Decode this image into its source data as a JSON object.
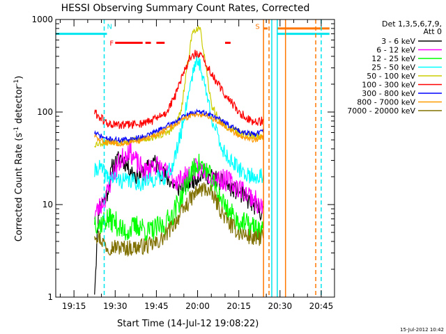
{
  "chart_data": {
    "type": "line",
    "title": "HESSI Observing Summary Count Rates, Corrected",
    "xlabel": "Start Time (14-Jul-12 19:08:22)",
    "ylabel_parts": [
      "Corrected Count Rate (s",
      "-1",
      " detector",
      "-1",
      ")"
    ],
    "y_scale": "log",
    "ylim": [
      1,
      1000
    ],
    "xlim": [
      "19:08:22",
      "20:49:50"
    ],
    "grid": false,
    "legend_placement": "right",
    "legend_header": [
      "Det 1,3,5,6,7,9,",
      "Att 0"
    ],
    "timestamp": "15-Jul-2012 10:42",
    "y_ticks": [
      {
        "value": 1,
        "label": "1"
      },
      {
        "value": 10,
        "label": "10"
      },
      {
        "value": 100,
        "label": "100"
      },
      {
        "value": 1000,
        "label": "1000"
      }
    ],
    "x_ticks": [
      {
        "time": "19:15",
        "label": "19:15"
      },
      {
        "time": "19:30",
        "label": "19:30"
      },
      {
        "time": "19:45",
        "label": "19:45"
      },
      {
        "time": "20:00",
        "label": "20:00"
      },
      {
        "time": "20:15",
        "label": "20:15"
      },
      {
        "time": "20:30",
        "label": "20:30"
      },
      {
        "time": "20:45",
        "label": "20:45"
      }
    ],
    "series": [
      {
        "name": "3 - 6 keV",
        "color": "#000000",
        "noise": 0.1,
        "seed": 11,
        "times": [
          "19:22:30",
          "19:24",
          "19:27",
          "19:29",
          "19:32",
          "19:35",
          "19:38",
          "19:41",
          "19:44",
          "19:47",
          "19:50",
          "19:53",
          "19:56",
          "19:59",
          "20:02",
          "20:05",
          "20:08",
          "20:11",
          "20:14",
          "20:17",
          "20:20",
          "20:22",
          "20:24"
        ],
        "values": [
          1.2,
          9,
          13,
          26,
          33,
          25,
          20,
          23,
          30,
          22,
          18,
          15,
          17,
          19,
          22,
          20,
          18,
          16,
          14,
          12,
          10,
          9,
          8
        ]
      },
      {
        "name": "6 - 12 keV",
        "color": "#ff00ff",
        "noise": 0.12,
        "seed": 23,
        "times": [
          "19:22:30",
          "19:24",
          "19:27",
          "19:29",
          "19:32",
          "19:35",
          "19:38",
          "19:41",
          "19:44",
          "19:47",
          "19:50",
          "19:53",
          "19:56",
          "19:59",
          "20:02",
          "20:05",
          "20:08",
          "20:11",
          "20:14",
          "20:17",
          "20:20",
          "20:22",
          "20:24"
        ],
        "values": [
          8,
          9,
          13,
          21,
          30,
          40,
          28,
          22,
          28,
          24,
          20,
          18,
          20,
          24,
          24,
          21,
          19,
          18,
          16,
          14,
          12,
          10,
          9
        ]
      },
      {
        "name": "12 - 25 keV",
        "color": "#00ff00",
        "noise": 0.13,
        "seed": 37,
        "times": [
          "19:22:30",
          "19:24",
          "19:27",
          "19:30",
          "19:33",
          "19:36",
          "19:39",
          "19:42",
          "19:45",
          "19:48",
          "19:51",
          "19:54",
          "19:57",
          "20:00",
          "20:03",
          "20:06",
          "20:09",
          "20:12",
          "20:15",
          "20:18",
          "20:21",
          "20:24"
        ],
        "values": [
          7,
          6,
          7,
          6.5,
          5,
          5.5,
          6,
          5,
          5.5,
          6,
          8,
          12,
          20,
          28,
          24,
          16,
          11,
          8,
          6.5,
          6,
          5.5,
          5
        ]
      },
      {
        "name": "25 - 50 keV",
        "color": "#00ffff",
        "noise": 0.09,
        "seed": 41,
        "times": [
          "19:22:30",
          "19:24",
          "19:27",
          "19:30",
          "19:33",
          "19:36",
          "19:39",
          "19:42",
          "19:45",
          "19:48",
          "19:51",
          "19:54",
          "19:57",
          "19:59",
          "20:01",
          "20:03",
          "20:06",
          "20:09",
          "20:12",
          "20:15",
          "20:18",
          "20:21",
          "20:24"
        ],
        "values": [
          22,
          26,
          20,
          19,
          18,
          18,
          17,
          18,
          19,
          20,
          26,
          60,
          180,
          340,
          330,
          170,
          70,
          40,
          30,
          24,
          21,
          20,
          20
        ]
      },
      {
        "name": "50 - 100 keV",
        "color": "#cccc00",
        "noise": 0.04,
        "seed": 53,
        "times": [
          "19:22:30",
          "19:24",
          "19:27",
          "19:30",
          "19:33",
          "19:36",
          "19:39",
          "19:42",
          "19:45",
          "19:48",
          "19:51",
          "19:54",
          "19:56",
          "19:58",
          "19:59",
          "20:00",
          "20:01",
          "20:02",
          "20:03",
          "20:05",
          "20:08",
          "20:11",
          "20:14",
          "20:17",
          "20:20",
          "20:22",
          "20:24"
        ],
        "values": [
          45,
          46,
          47,
          48,
          48,
          49,
          50,
          52,
          55,
          58,
          65,
          100,
          280,
          700,
          780,
          800,
          750,
          500,
          300,
          120,
          80,
          68,
          62,
          58,
          55,
          56,
          52
        ]
      },
      {
        "name": "100 - 300 keV",
        "color": "#ff0000",
        "noise": 0.05,
        "seed": 61,
        "times": [
          "19:22:30",
          "19:24",
          "19:27",
          "19:30",
          "19:33",
          "19:36",
          "19:39",
          "19:42",
          "19:45",
          "19:48",
          "19:51",
          "19:54",
          "19:57",
          "19:59",
          "20:01",
          "20:03",
          "20:06",
          "20:09",
          "20:12",
          "20:15",
          "20:18",
          "20:21",
          "20:24"
        ],
        "values": [
          100,
          90,
          75,
          72,
          72,
          73,
          75,
          78,
          85,
          95,
          130,
          220,
          380,
          420,
          410,
          330,
          230,
          170,
          130,
          100,
          85,
          78,
          80
        ]
      },
      {
        "name": "300 - 800 keV",
        "color": "#0000ff",
        "noise": 0.03,
        "seed": 71,
        "times": [
          "19:22:30",
          "19:24",
          "19:27",
          "19:30",
          "19:33",
          "19:36",
          "19:39",
          "19:42",
          "19:45",
          "19:48",
          "19:51",
          "19:54",
          "19:57",
          "20:00",
          "20:03",
          "20:06",
          "20:09",
          "20:12",
          "20:15",
          "20:18",
          "20:21",
          "20:24"
        ],
        "values": [
          60,
          56,
          51,
          50,
          50,
          51,
          53,
          57,
          62,
          68,
          76,
          86,
          95,
          100,
          97,
          90,
          80,
          70,
          63,
          60,
          58,
          62
        ]
      },
      {
        "name": "800 - 7000 keV",
        "color": "#ff9900",
        "noise": 0.03,
        "seed": 83,
        "times": [
          "19:22:30",
          "19:24",
          "19:27",
          "19:30",
          "19:33",
          "19:36",
          "19:39",
          "19:42",
          "19:45",
          "19:48",
          "19:51",
          "19:54",
          "19:57",
          "20:00",
          "20:03",
          "20:06",
          "20:09",
          "20:12",
          "20:15",
          "20:18",
          "20:21",
          "20:24"
        ],
        "values": [
          55,
          50,
          47,
          46,
          46,
          47,
          49,
          52,
          57,
          63,
          71,
          80,
          90,
          96,
          92,
          84,
          74,
          64,
          56,
          52,
          50,
          54
        ]
      },
      {
        "name": "7000 - 20000 keV",
        "color": "#807000",
        "noise": 0.09,
        "seed": 97,
        "times": [
          "19:22:30",
          "19:24",
          "19:27",
          "19:30",
          "19:33",
          "19:36",
          "19:39",
          "19:42",
          "19:45",
          "19:48",
          "19:51",
          "19:54",
          "19:57",
          "20:00",
          "20:03",
          "20:06",
          "20:09",
          "20:12",
          "20:15",
          "20:18",
          "20:21",
          "20:24"
        ],
        "values": [
          5,
          4.5,
          3.5,
          3.5,
          3.4,
          3.4,
          3.5,
          3.6,
          3.8,
          4.5,
          6,
          8,
          11,
          14,
          15,
          12,
          8,
          6,
          5,
          4.6,
          4.2,
          4.6
        ]
      }
    ],
    "markers": [
      {
        "kind": "bar",
        "color": "#00e5ee",
        "y": 700,
        "t_start": "19:08:22",
        "t_end": "19:27",
        "width": 3
      },
      {
        "kind": "bar",
        "color": "#00e5ee",
        "y": 700,
        "t_start": "20:29",
        "t_end": "20:48",
        "width": 3
      },
      {
        "kind": "bar",
        "color": "#ff7700",
        "y": 800,
        "t_start": "20:24",
        "t_end": "20:25:30",
        "width": 3
      },
      {
        "kind": "bar",
        "color": "#ff7700",
        "y": 800,
        "t_start": "20:29",
        "t_end": "20:48",
        "width": 3
      },
      {
        "kind": "bar",
        "color": "#ff0000",
        "y": 560,
        "t_start": "19:30",
        "t_end": "19:40",
        "width": 3
      },
      {
        "kind": "bar",
        "color": "#ff0000",
        "y": 560,
        "t_start": "19:41",
        "t_end": "19:43",
        "width": 3
      },
      {
        "kind": "bar",
        "color": "#ff0000",
        "y": 560,
        "t_start": "19:45",
        "t_end": "19:48",
        "width": 3
      },
      {
        "kind": "bar",
        "color": "#ff0000",
        "y": 560,
        "t_start": "20:10",
        "t_end": "20:12",
        "width": 3
      },
      {
        "kind": "vline",
        "color": "#00e5ee",
        "t": "19:26",
        "dash": "6,4"
      },
      {
        "kind": "vline",
        "color": "#ff7700",
        "t": "20:24",
        "dash": ""
      },
      {
        "kind": "vline",
        "color": "#ff7700",
        "t": "20:26",
        "dash": "6,4"
      },
      {
        "kind": "vline",
        "color": "#00e5ee",
        "t": "20:27",
        "dash": ""
      },
      {
        "kind": "vline",
        "color": "#00e5ee",
        "t": "20:29",
        "dash": ""
      },
      {
        "kind": "vline",
        "color": "#ff7700",
        "t": "20:32",
        "dash": ""
      },
      {
        "kind": "vline",
        "color": "#ff7700",
        "t": "20:43",
        "dash": "6,4"
      },
      {
        "kind": "vline",
        "color": "#00e5ee",
        "t": "20:45",
        "dash": "6,4"
      }
    ],
    "flag_labels": [
      {
        "text": "N",
        "color": "#00e5ee",
        "t": "19:27",
        "y": 850
      },
      {
        "text": "F",
        "color": "#ff0000",
        "t": "19:28",
        "y": 560
      },
      {
        "text": "S",
        "color": "#ff7700",
        "t": "20:21",
        "y": 850
      }
    ]
  }
}
